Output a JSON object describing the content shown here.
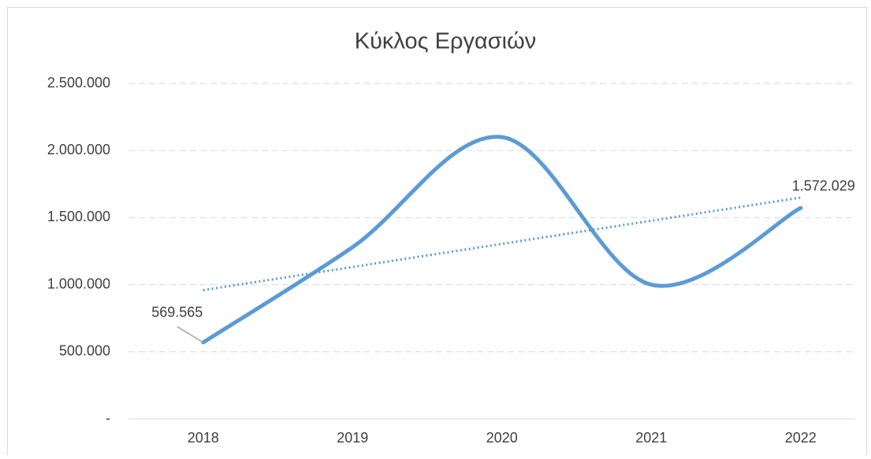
{
  "chart_data": {
    "type": "line",
    "title": "Κύκλος Εργασιών",
    "categories": [
      "2018",
      "2019",
      "2020",
      "2021",
      "2022"
    ],
    "series": [
      {
        "name": "Κύκλος Εργασιών",
        "color": "#5b9bd5",
        "values": [
          569565,
          1280000,
          2100000,
          1000000,
          1572029
        ],
        "value_labels": [
          "569.565",
          null,
          null,
          null,
          "1.572.029"
        ]
      }
    ],
    "trendline": "linear",
    "smooth": true,
    "ylim": [
      0,
      2500000
    ],
    "yticks": [
      {
        "value": 0,
        "label": "-"
      },
      {
        "value": 500000,
        "label": "500.000"
      },
      {
        "value": 1000000,
        "label": "1.000.000"
      },
      {
        "value": 1500000,
        "label": "1.500.000"
      },
      {
        "value": 2000000,
        "label": "2.000.000"
      },
      {
        "value": 2500000,
        "label": "2.500.000"
      }
    ],
    "grid": true
  }
}
